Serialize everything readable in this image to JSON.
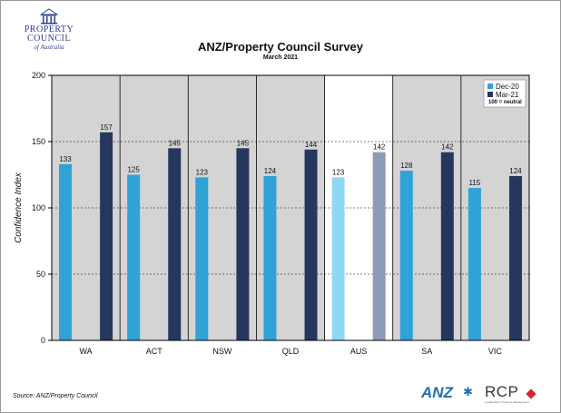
{
  "logo": {
    "icon": "building-columns-icon",
    "line1": "PROPERTY",
    "line2": "COUNCIL",
    "line3": "of Australia"
  },
  "chart_data": {
    "type": "bar",
    "title": "ANZ/Property Council Survey",
    "subtitle": "March 2021",
    "ylabel": "Confidence Index",
    "xlabel": "",
    "ylim": [
      0,
      200
    ],
    "yticks": [
      0,
      50,
      100,
      150,
      200
    ],
    "grid": "dashed horizontal at 50, 100, 150",
    "categories": [
      "WA",
      "ACT",
      "NSW",
      "QLD",
      "AUS",
      "SA",
      "VIC"
    ],
    "series": [
      {
        "name": "Dec-20",
        "values": [
          133,
          125,
          123,
          124,
          123,
          128,
          115
        ],
        "color": "#2fa2d6",
        "highlight_color": "#8fd8f5"
      },
      {
        "name": "Mar-21",
        "values": [
          157,
          145,
          145,
          144,
          142,
          142,
          124
        ],
        "color": "#26375e",
        "highlight_color": "#8e9ab9"
      }
    ],
    "highlight_category": "AUS",
    "legend_position": "top-right",
    "legend_note": "100 = neutral",
    "panel_color": "#d4d4d4",
    "highlight_panel_color": "#ffffff"
  },
  "footer": {
    "source": "Source: ANZ/Property Council",
    "anz_logo": "ANZ",
    "anz_icon": "anz-star-icon",
    "rcp_logo": "RCP",
    "rcp_icon": "red-diamond-icon",
    "rcp_tagline": "Leadership in Property Management"
  }
}
